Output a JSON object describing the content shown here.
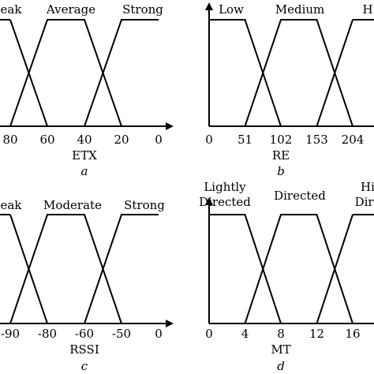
{
  "chart_data": [
    {
      "type": "line",
      "color": "#000000",
      "ylim": [
        0,
        1
      ],
      "xlabel": "ETX",
      "caption": "a",
      "categories": [
        "80",
        "60",
        "40",
        "20",
        "0"
      ],
      "series": [
        {
          "name": "eak",
          "values": [
            1,
            0,
            0,
            0,
            0
          ]
        },
        {
          "name": "Average",
          "values": [
            0,
            1,
            1,
            0,
            0
          ]
        },
        {
          "name": "Strong",
          "values": [
            0,
            0,
            0,
            1,
            1
          ]
        }
      ]
    },
    {
      "type": "line",
      "color": "#000000",
      "ylim": [
        0,
        1
      ],
      "xlabel": "RE",
      "caption": "b",
      "categories": [
        "0",
        "51",
        "102",
        "153",
        "204"
      ],
      "series": [
        {
          "name": "Low",
          "values": [
            1,
            1,
            0,
            0,
            0
          ]
        },
        {
          "name": "Medium",
          "values": [
            0,
            0,
            1,
            1,
            0
          ]
        },
        {
          "name": "H",
          "values": [
            0,
            0,
            0,
            0,
            1
          ]
        }
      ]
    },
    {
      "type": "line",
      "color": "#000000",
      "ylim": [
        0,
        1
      ],
      "xlabel": "RSSI",
      "caption": "c",
      "categories": [
        "-90",
        "-80",
        "-60",
        "-50",
        "0"
      ],
      "series": [
        {
          "name": "eak",
          "values": [
            1,
            0,
            0,
            0,
            0
          ]
        },
        {
          "name": "Moderate",
          "values": [
            0,
            1,
            1,
            0,
            0
          ]
        },
        {
          "name": "Strong",
          "values": [
            0,
            0,
            0,
            1,
            1
          ]
        }
      ]
    },
    {
      "type": "line",
      "color": "#000000",
      "ylim": [
        0,
        1
      ],
      "xlabel": "MT",
      "caption": "d",
      "categories": [
        "0",
        "4",
        "8",
        "12",
        "16"
      ],
      "series": [
        {
          "name": "Lightly\nDirected",
          "values": [
            1,
            1,
            0,
            0,
            0
          ]
        },
        {
          "name": "Directed",
          "values": [
            0,
            0,
            1,
            1,
            0
          ]
        },
        {
          "name": "Hi\nDire",
          "values": [
            0,
            0,
            0,
            0,
            1
          ]
        }
      ]
    }
  ]
}
